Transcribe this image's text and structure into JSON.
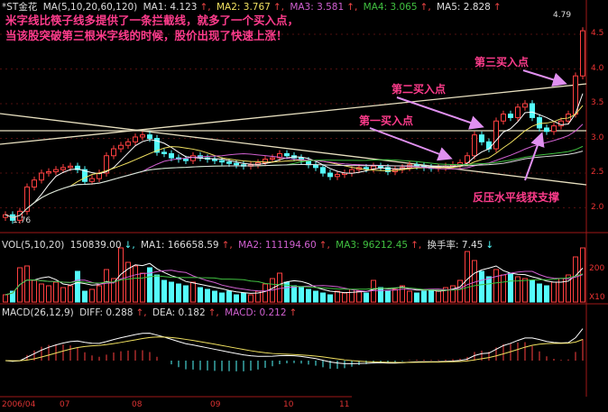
{
  "header": {
    "symbol": "*ST金花",
    "ma_params": "MA(5,10,20,60,120)",
    "ma1": "MA1: 4.123",
    "ma2": "MA2: 3.767",
    "ma3": "MA3: 3.581",
    "ma4": "MA4: 3.065",
    "ma5": "MA5: 2.828"
  },
  "vol_header": {
    "label": "VOL(5,10,20)",
    "value": "150839.00",
    "ma1": "MA1: 166658.59",
    "ma2": "MA2: 111194.60",
    "ma3": "MA3: 96212.45",
    "turnover": "换手率: 7.45"
  },
  "macd_header": {
    "label": "MACD(26,12,9)",
    "diff": "DIFF: 0.288",
    "dea": "DEA: 0.182",
    "macd": "MACD: 0.212"
  },
  "note": "米字线比筷子线多提供了一条拦截线，就多了一个买入点，当该股突破第三根米字线的时候，股价出现了快速上涨！",
  "annotations": {
    "buy1": "第一买入点",
    "buy2": "第二买入点",
    "buy3": "第三买入点",
    "support": "反压水平线获支撑"
  },
  "colors": {
    "up": "#ff4040",
    "down": "#54fcfc",
    "ma1": "#ffffff",
    "ma2": "#f0e060",
    "ma3": "#d060d0",
    "ma4": "#40c040",
    "ma5": "#e0e0e0",
    "annotation": "#ff3c8c",
    "arrow": "#e090f0"
  },
  "chart_data": {
    "type": "candlestick",
    "price_axis": {
      "ticks": [
        "4.5",
        "4.0",
        "3.5",
        "3.0",
        "2.5",
        "2.0"
      ],
      "range": [
        1.76,
        4.79
      ],
      "high_label": "4.79",
      "low_label": "1.76"
    },
    "vol_axis": {
      "ticks": [
        "200",
        "X10"
      ]
    },
    "date_labels": [
      "2006/04",
      "07",
      "08",
      "09",
      "10",
      "11"
    ],
    "closes": [
      1.9,
      1.82,
      1.95,
      2.3,
      2.4,
      2.5,
      2.52,
      2.55,
      2.58,
      2.6,
      2.55,
      2.38,
      2.42,
      2.5,
      2.75,
      2.85,
      2.9,
      2.95,
      3.02,
      3.05,
      3.0,
      2.8,
      2.78,
      2.72,
      2.7,
      2.68,
      2.75,
      2.72,
      2.7,
      2.68,
      2.66,
      2.64,
      2.62,
      2.6,
      2.62,
      2.65,
      2.7,
      2.72,
      2.78,
      2.75,
      2.72,
      2.68,
      2.62,
      2.58,
      2.5,
      2.45,
      2.48,
      2.5,
      2.55,
      2.58,
      2.56,
      2.6,
      2.58,
      2.52,
      2.55,
      2.58,
      2.62,
      2.6,
      2.58,
      2.57,
      2.58,
      2.6,
      2.62,
      2.65,
      2.75,
      3.05,
      2.95,
      2.85,
      3.25,
      3.35,
      3.3,
      3.45,
      3.5,
      3.3,
      3.15,
      3.1,
      3.18,
      3.25,
      3.35,
      3.9,
      4.55
    ],
    "volumes": [
      40,
      60,
      190,
      200,
      120,
      100,
      90,
      110,
      80,
      90,
      170,
      60,
      70,
      90,
      180,
      130,
      300,
      220,
      200,
      160,
      190,
      150,
      120,
      110,
      100,
      90,
      110,
      80,
      70,
      60,
      50,
      60,
      40,
      50,
      40,
      60,
      100,
      130,
      160,
      110,
      90,
      80,
      70,
      60,
      50,
      40,
      60,
      50,
      70,
      60,
      50,
      120,
      80,
      60,
      70,
      90,
      60,
      50,
      60,
      70,
      60,
      80,
      90,
      120,
      280,
      230,
      170,
      140,
      180,
      150,
      160,
      140,
      130,
      120,
      100,
      90,
      110,
      130,
      150,
      250,
      300
    ]
  }
}
